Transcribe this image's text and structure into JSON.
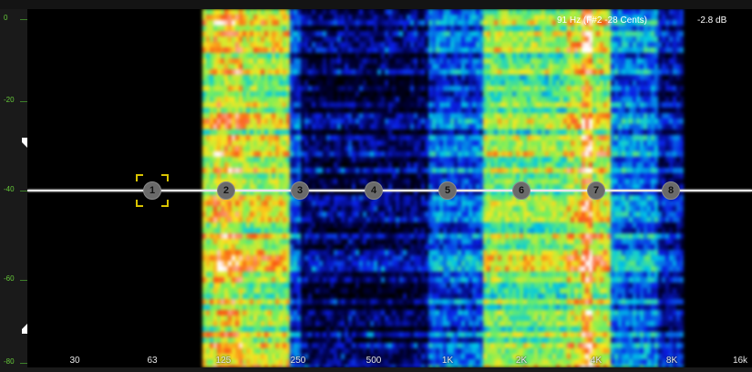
{
  "axis": {
    "db_ticks": [
      "0",
      "-20",
      "-40",
      "-60",
      "-80"
    ],
    "freq_labels": [
      "30",
      "63",
      "125",
      "250",
      "500",
      "1K",
      "2K",
      "4K",
      "8K",
      "16k"
    ]
  },
  "readout": {
    "note_info": "91 Hz (F#2 -28 Cents)",
    "gain": "-2.8 dB"
  },
  "bands": [
    {
      "label": "1",
      "selected": true
    },
    {
      "label": "2"
    },
    {
      "label": "3"
    },
    {
      "label": "4"
    },
    {
      "label": "5"
    },
    {
      "label": "6"
    },
    {
      "label": "7"
    },
    {
      "label": "8"
    }
  ],
  "colors": {
    "db_text": "#66c93a",
    "selection": "#d9c400",
    "eq_line": "#e8e8e8"
  },
  "icons": {
    "range_top": "down-triangle-handle-icon",
    "range_bottom": "up-triangle-handle-icon"
  }
}
